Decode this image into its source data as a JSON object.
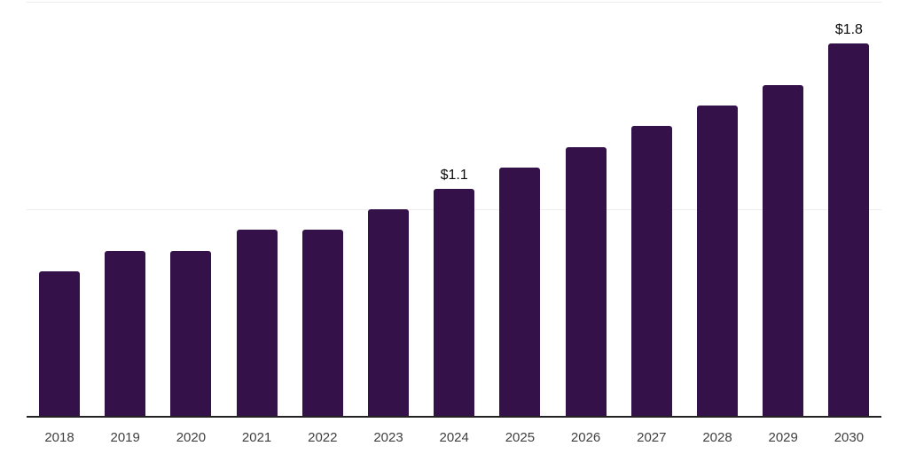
{
  "chart_data": {
    "type": "bar",
    "title": "",
    "xlabel": "",
    "ylabel": "",
    "categories": [
      "2018",
      "2019",
      "2020",
      "2021",
      "2022",
      "2023",
      "2024",
      "2025",
      "2026",
      "2027",
      "2028",
      "2029",
      "2030"
    ],
    "values": [
      0.7,
      0.8,
      0.8,
      0.9,
      0.9,
      1.0,
      1.1,
      1.2,
      1.3,
      1.4,
      1.5,
      1.6,
      1.8
    ],
    "data_labels": [
      {
        "category": "2024",
        "text": "$1.1"
      },
      {
        "category": "2030",
        "text": "$1.8"
      }
    ],
    "ylim": [
      0,
      2.0
    ],
    "gridline_values": [
      1.0,
      2.0
    ],
    "grid": true,
    "legend": false,
    "y_tick_labels_shown": false,
    "colors": {
      "bar": "#341249",
      "grid": "#ededed",
      "axis_line": "#222222",
      "tick_label": "#404040",
      "data_label": "#0a0a0a",
      "background": "#ffffff"
    }
  }
}
